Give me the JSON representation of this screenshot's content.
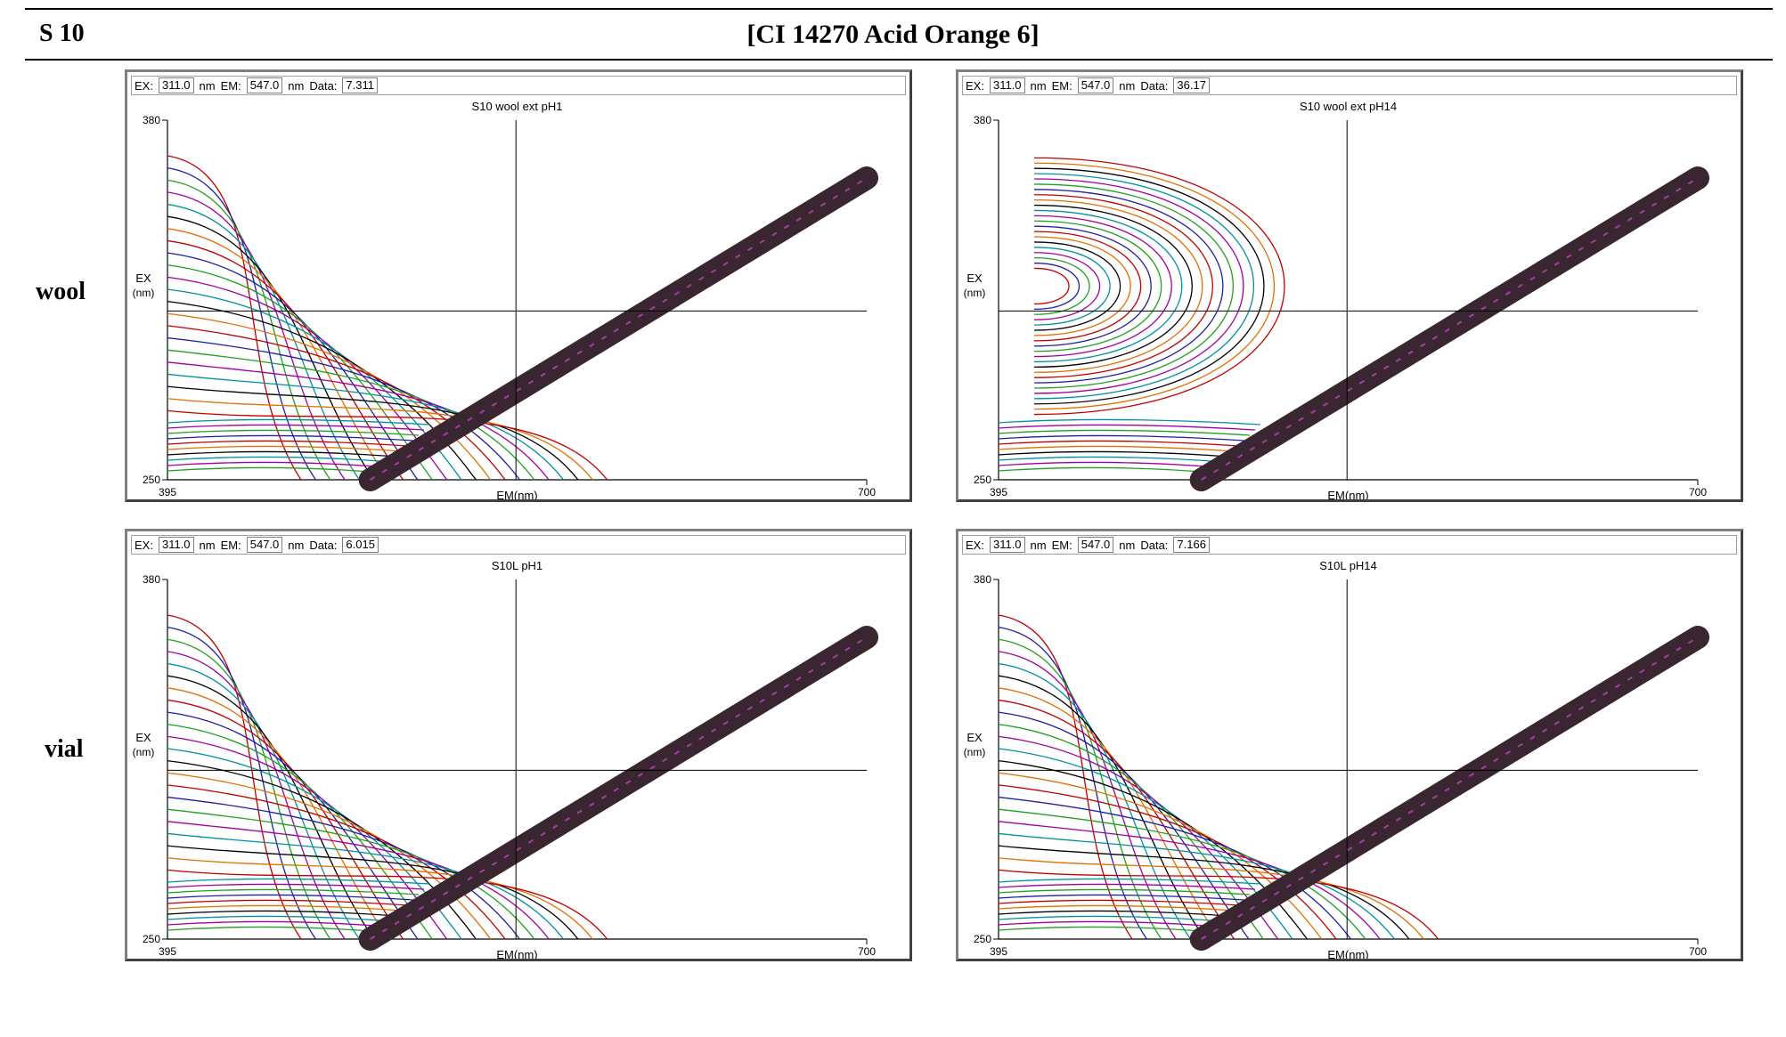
{
  "header": {
    "sample_id": "S 10",
    "title": "[CI 14270 Acid Orange 6]"
  },
  "row_labels": [
    "wool",
    "vial"
  ],
  "common": {
    "ex_label": "EX:",
    "em_label": "EM:",
    "data_label": "Data:",
    "unit": "nm",
    "ex_value": "311.0",
    "em_value": "547.0"
  },
  "chart_data": [
    {
      "type": "contour",
      "title": "S10 wool ext pH1",
      "data_readout": "7.311",
      "xlabel": "EM(nm)",
      "ylabel": "EX (nm)",
      "xlim": [
        395,
        700
      ],
      "ylim": [
        250,
        380
      ],
      "cursor": {
        "em": 547.0,
        "ex": 311.0
      },
      "colors": [
        "#c00000",
        "#1f1fa6",
        "#20a020",
        "#a000a0",
        "#0090a0",
        "#000000",
        "#e07000"
      ]
    },
    {
      "type": "contour",
      "title": "S10 wool ext pH14",
      "data_readout": "36.17",
      "xlabel": "EM(nm)",
      "ylabel": "EX (nm)",
      "xlim": [
        395,
        700
      ],
      "ylim": [
        250,
        380
      ],
      "cursor": {
        "em": 547.0,
        "ex": 311.0
      },
      "colors": [
        "#c00000",
        "#1f1fa6",
        "#20a020",
        "#a000a0",
        "#0090a0",
        "#000000",
        "#e07000"
      ]
    },
    {
      "type": "contour",
      "title": "S10L pH1",
      "data_readout": "6.015",
      "xlabel": "EM(nm)",
      "ylabel": "EX (nm)",
      "xlim": [
        395,
        700
      ],
      "ylim": [
        250,
        380
      ],
      "cursor": {
        "em": 547.0,
        "ex": 311.0
      },
      "colors": [
        "#c00000",
        "#1f1fa6",
        "#20a020",
        "#a000a0",
        "#0090a0",
        "#000000",
        "#e07000"
      ]
    },
    {
      "type": "contour",
      "title": "S10L pH14",
      "data_readout": "7.166",
      "xlabel": "EM(nm)",
      "ylabel": "EX (nm)",
      "xlim": [
        395,
        700
      ],
      "ylim": [
        250,
        380
      ],
      "cursor": {
        "em": 547.0,
        "ex": 311.0
      },
      "colors": [
        "#c00000",
        "#1f1fa6",
        "#20a020",
        "#a000a0",
        "#0090a0",
        "#000000",
        "#e07000"
      ]
    }
  ]
}
